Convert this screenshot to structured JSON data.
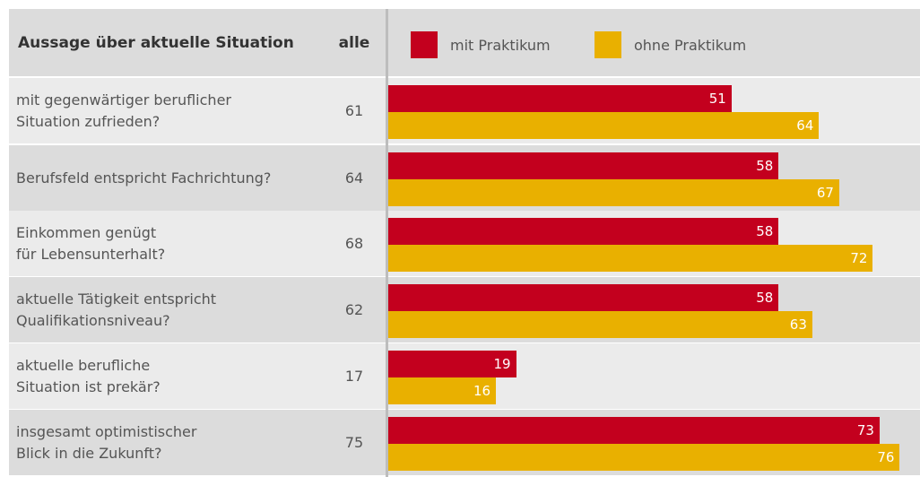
{
  "chart_data": {
    "type": "bar",
    "orientation": "horizontal",
    "table_header": "Aussage über aktuelle Situation",
    "total_header": "alle",
    "categories": [
      "mit gegenwärtiger beruflicher\nSituation zufrieden?",
      "Berufsfeld entspricht Fachrichtung?",
      "Einkommen genügt\nfür Lebensunterhalt?",
      "aktuelle Tätigkeit entspricht\nQualifikationsniveau?",
      "aktuelle berufliche\nSituation ist prekär?",
      "insgesamt optimistischer\nBlick in die Zukunft?"
    ],
    "totals": [
      61,
      64,
      68,
      62,
      17,
      75
    ],
    "series": [
      {
        "name": "mit Praktikum",
        "color": "#c3001e",
        "values": [
          51,
          58,
          58,
          58,
          19,
          73
        ]
      },
      {
        "name": "ohne Praktikum",
        "color": "#e9b000",
        "values": [
          64,
          67,
          72,
          63,
          16,
          76
        ]
      }
    ],
    "xlim": [
      0,
      79
    ]
  }
}
